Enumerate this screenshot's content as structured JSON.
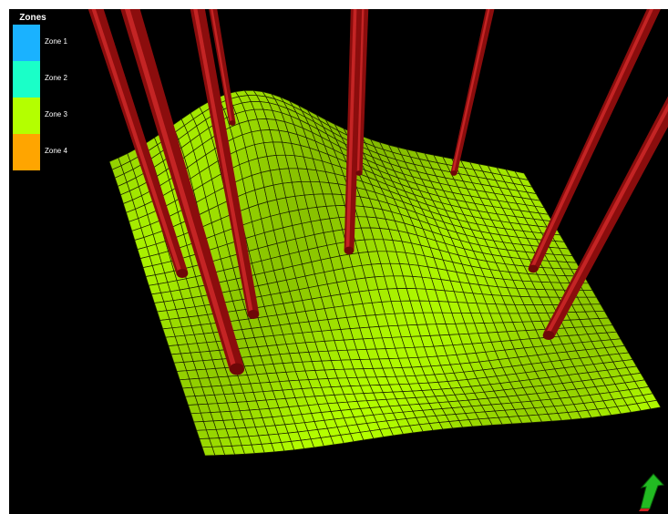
{
  "legend": {
    "title": "Zones",
    "zones": [
      {
        "label": "Zone 1",
        "color": "#1ab2ff"
      },
      {
        "label": "Zone 2",
        "color": "#1affc8"
      },
      {
        "label": "Zone 3",
        "color": "#b4ff00"
      },
      {
        "label": "Zone 4",
        "color": "#ffa500"
      }
    ]
  },
  "colors": {
    "background": "#000000",
    "surface_fill": "#b4ff00",
    "grid_lines": "#1a2000",
    "wells": "#8b0d0d",
    "north_arrow": "#22bb22"
  },
  "icons": {
    "north_arrow": "north-arrow-icon"
  }
}
